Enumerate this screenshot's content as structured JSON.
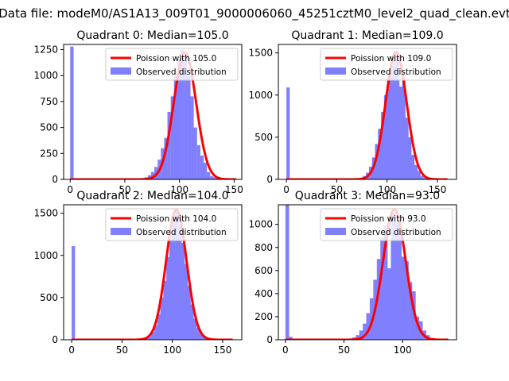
{
  "figure": {
    "suptitle": "Data file: modeM0/AS1A13_009T01_9000006060_45251cztM0_level2_quad_clean.evt"
  },
  "colors": {
    "observed": "#8080ff",
    "poisson": "#ff0000",
    "frame": "#000000"
  },
  "chart_data": [
    {
      "type": "bar",
      "title": "Quadrant 0: Median=105.0",
      "xlim": [
        -6,
        157
      ],
      "ylim": [
        0,
        1300
      ],
      "xticks": [
        0,
        50,
        100,
        150
      ],
      "yticks": [
        0,
        250,
        500,
        750,
        1000,
        1250
      ],
      "median": 105.0,
      "bin_width": 3.1,
      "legend": {
        "position": "upper right",
        "entries": [
          "Poission with 105.0",
          "Observed distribution"
        ]
      },
      "observed": {
        "name": "Observed distribution",
        "x": [
          0,
          65,
          68,
          71,
          74,
          77,
          80,
          83,
          86,
          89,
          92,
          95,
          98,
          101,
          104,
          107,
          110,
          113,
          116,
          119,
          122,
          125,
          128,
          131,
          134
        ],
        "values": [
          1280,
          10,
          20,
          40,
          70,
          120,
          190,
          300,
          400,
          650,
          800,
          1000,
          1150,
          1250,
          1200,
          1000,
          800,
          500,
          330,
          230,
          160,
          70,
          30,
          20,
          10
        ]
      },
      "poisson": {
        "name": "Poission with 105.0",
        "mean": 105.0,
        "peak": 1220,
        "x_range": [
          0,
          152
        ]
      }
    },
    {
      "type": "bar",
      "title": "Quadrant 1: Median=109.0",
      "xlim": [
        -8,
        169
      ],
      "ylim": [
        0,
        1600
      ],
      "xticks": [
        0,
        50,
        100,
        150
      ],
      "yticks": [
        0,
        500,
        1000,
        1500
      ],
      "median": 109.0,
      "bin_width": 3.3,
      "legend": {
        "position": "upper right",
        "entries": [
          "Poission with 109.0",
          "Observed distribution"
        ]
      },
      "observed": {
        "name": "Observed distribution",
        "x": [
          0,
          70,
          73,
          76,
          79,
          82,
          85,
          88,
          91,
          94,
          97,
          100,
          103,
          106,
          109,
          112,
          115,
          118,
          121,
          124,
          127,
          130,
          133,
          136,
          139,
          142
        ],
        "values": [
          1090,
          10,
          20,
          40,
          80,
          150,
          260,
          420,
          600,
          800,
          1000,
          1200,
          1350,
          1500,
          1470,
          1100,
          1170,
          730,
          500,
          290,
          170,
          100,
          40,
          20,
          10,
          5
        ]
      },
      "poisson": {
        "name": "Poission with 109.0",
        "mean": 109.0,
        "peak": 1510,
        "x_range": [
          0,
          160
        ]
      }
    },
    {
      "type": "bar",
      "title": "Quadrant 2: Median=104.0",
      "xlim": [
        -8,
        169
      ],
      "ylim": [
        0,
        1600
      ],
      "xticks": [
        0,
        50,
        100,
        150
      ],
      "yticks": [
        0,
        500,
        1000,
        1500
      ],
      "median": 104.0,
      "bin_width": 3.3,
      "legend": {
        "position": "upper right",
        "entries": [
          "Poission with 104.0",
          "Observed distribution"
        ]
      },
      "observed": {
        "name": "Observed distribution",
        "x": [
          0,
          70,
          73,
          76,
          79,
          82,
          85,
          88,
          91,
          94,
          97,
          100,
          103,
          106,
          109,
          112,
          115,
          118,
          121,
          124,
          127,
          130,
          133,
          136
        ],
        "values": [
          1110,
          10,
          20,
          40,
          90,
          170,
          300,
          500,
          700,
          980,
          1200,
          1450,
          1520,
          1350,
          1150,
          900,
          640,
          420,
          250,
          140,
          80,
          40,
          20,
          5
        ]
      },
      "poisson": {
        "name": "Poission with 104.0",
        "mean": 104.0,
        "peak": 1540,
        "x_range": [
          0,
          160
        ]
      }
    },
    {
      "type": "bar",
      "title": "Quadrant 3: Median=93.0",
      "xlim": [
        -6,
        146
      ],
      "ylim": [
        0,
        1170
      ],
      "xticks": [
        0,
        50,
        100
      ],
      "yticks": [
        0,
        200,
        400,
        600,
        800,
        1000
      ],
      "median": 93.0,
      "bin_width": 3.2,
      "legend": {
        "position": "upper right",
        "entries": [
          "Poission with 93.0",
          "Observed distribution"
        ]
      },
      "observed": {
        "name": "Observed distribution",
        "x": [
          0,
          3,
          54,
          57,
          60,
          63,
          66,
          69,
          72,
          75,
          78,
          81,
          84,
          87,
          90,
          93,
          96,
          99,
          102,
          105,
          108,
          111,
          114,
          117,
          120,
          123
        ],
        "values": [
          1170,
          25,
          10,
          20,
          40,
          80,
          140,
          230,
          360,
          520,
          700,
          880,
          990,
          620,
          1100,
          1020,
          1080,
          720,
          680,
          500,
          420,
          200,
          160,
          80,
          40,
          15
        ]
      },
      "poisson": {
        "name": "Poission with 93.0",
        "mean": 93.0,
        "peak": 1130,
        "x_range": [
          0,
          139
        ]
      }
    }
  ]
}
